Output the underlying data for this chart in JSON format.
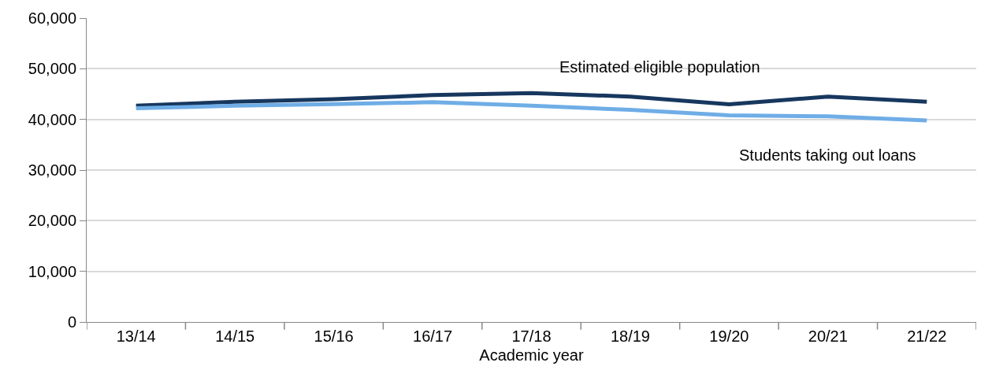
{
  "chart_data": {
    "type": "line",
    "xlabel": "Academic year",
    "categories": [
      "13/14",
      "14/15",
      "15/16",
      "16/17",
      "17/18",
      "18/19",
      "19/20",
      "20/21",
      "21/22"
    ],
    "series": [
      {
        "name": "Estimated eligible population",
        "color": "#17375e",
        "values": [
          42700,
          43500,
          44000,
          44800,
          45200,
          44500,
          43000,
          44500,
          43500
        ]
      },
      {
        "name": "Students taking out loans",
        "color": "#6fade6",
        "values": [
          42200,
          42700,
          43000,
          43400,
          42700,
          41900,
          40800,
          40600,
          39800
        ]
      }
    ],
    "ylim": [
      0,
      60000
    ],
    "yticks": [
      {
        "value": 0,
        "label": "0"
      },
      {
        "value": 10000,
        "label": "10,000"
      },
      {
        "value": 20000,
        "label": "20,000"
      },
      {
        "value": 30000,
        "label": "30,000"
      },
      {
        "value": 40000,
        "label": "40,000"
      },
      {
        "value": 50000,
        "label": "50,000"
      },
      {
        "value": 60000,
        "label": "60,000"
      }
    ],
    "grid": "y",
    "legend": false,
    "marker": "none",
    "line_style": "solid"
  }
}
